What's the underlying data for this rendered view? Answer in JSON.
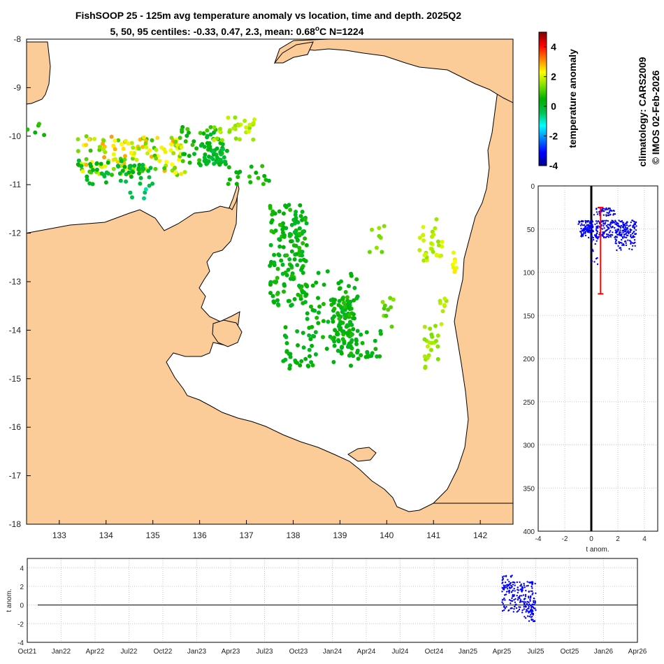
{
  "title": {
    "line1": "FishSOOP 25 - 125m avg temperature anomaly vs location, time and depth. 2025Q2",
    "line2_prefix": "5, 50, 95 centiles: -0.33, 0.47, 2.3, mean: 0.68",
    "line2_degree": "o",
    "line2_suffix": "C N=1224"
  },
  "side_text": {
    "climatology": "climatology: CARS2009",
    "credit": "© IMOS 02-Feb-2026"
  },
  "colors": {
    "land": "#fbcb98",
    "coast": "#000000",
    "profile_points": "#0000ff",
    "profile_bar": "#ff0000",
    "timeseries_points": "#0000ff"
  },
  "chart_data": [
    {
      "type": "scatter",
      "name": "map",
      "xlabel": "",
      "ylabel": "",
      "xlim": [
        132.3,
        142.7
      ],
      "ylim": [
        -18,
        -8
      ],
      "xticks": [
        "133",
        "134",
        "135",
        "136",
        "137",
        "138",
        "139",
        "140",
        "141",
        "142"
      ],
      "yticks": [
        "-8",
        "-9",
        "-10",
        "-11",
        "-12",
        "-13",
        "-14",
        "-15",
        "-16",
        "-17",
        "-18"
      ],
      "grid": false,
      "color_by": "temperature anomaly",
      "clusters": [
        {
          "lon": [
            133.4,
            135.7
          ],
          "lat": [
            -10.8,
            -10.0
          ],
          "anom": [
            0.8,
            3.0
          ],
          "n": 140
        },
        {
          "lon": [
            133.4,
            135.0
          ],
          "lat": [
            -11.0,
            -10.5
          ],
          "anom": [
            -0.3,
            0.6
          ],
          "n": 50
        },
        {
          "lon": [
            135.6,
            136.5
          ],
          "lat": [
            -10.6,
            -9.8
          ],
          "anom": [
            0.0,
            1.0
          ],
          "n": 45
        },
        {
          "lon": [
            136.1,
            136.6
          ],
          "lat": [
            -10.6,
            -10.2
          ],
          "anom": [
            -0.4,
            0.4
          ],
          "n": 35
        },
        {
          "lon": [
            136.3,
            137.2
          ],
          "lat": [
            -10.1,
            -9.6
          ],
          "anom": [
            1.4,
            2.1
          ],
          "n": 30
        },
        {
          "lon": [
            136.6,
            137.5
          ],
          "lat": [
            -11.0,
            -10.6
          ],
          "anom": [
            0.2,
            0.9
          ],
          "n": 18
        },
        {
          "lon": [
            137.5,
            138.3
          ],
          "lat": [
            -13.5,
            -11.4
          ],
          "anom": [
            0.0,
            0.8
          ],
          "n": 160
        },
        {
          "lon": [
            137.7,
            138.5
          ],
          "lat": [
            -14.8,
            -13.9
          ],
          "anom": [
            0.0,
            0.6
          ],
          "n": 35
        },
        {
          "lon": [
            138.3,
            139.4
          ],
          "lat": [
            -14.8,
            -12.7
          ],
          "anom": [
            0.0,
            0.7
          ],
          "n": 60
        },
        {
          "lon": [
            138.8,
            139.3
          ],
          "lat": [
            -14.4,
            -13.3
          ],
          "anom": [
            0.1,
            0.8
          ],
          "n": 90
        },
        {
          "lon": [
            139.3,
            139.9
          ],
          "lat": [
            -14.6,
            -14.0
          ],
          "anom": [
            0.1,
            0.7
          ],
          "n": 22
        },
        {
          "lon": [
            139.6,
            140.0
          ],
          "lat": [
            -12.4,
            -11.8
          ],
          "anom": [
            1.0,
            1.6
          ],
          "n": 8
        },
        {
          "lon": [
            139.9,
            140.2
          ],
          "lat": [
            -14.0,
            -13.3
          ],
          "anom": [
            0.9,
            1.5
          ],
          "n": 10
        },
        {
          "lon": [
            140.7,
            141.2
          ],
          "lat": [
            -12.6,
            -11.7
          ],
          "anom": [
            1.5,
            2.1
          ],
          "n": 30
        },
        {
          "lon": [
            140.8,
            141.1
          ],
          "lat": [
            -14.8,
            -13.8
          ],
          "anom": [
            1.3,
            1.9
          ],
          "n": 22
        },
        {
          "lon": [
            141.4,
            141.5
          ],
          "lat": [
            -12.8,
            -12.4
          ],
          "anom": [
            2.0,
            2.6
          ],
          "n": 8
        },
        {
          "lon": [
            141.1,
            141.3
          ],
          "lat": [
            -14.0,
            -13.3
          ],
          "anom": [
            1.5,
            2.0
          ],
          "n": 8
        },
        {
          "lon": [
            134.5,
            135.0
          ],
          "lat": [
            -11.3,
            -11.0
          ],
          "anom": [
            -1.0,
            -0.3
          ],
          "n": 6
        },
        {
          "lon": [
            132.3,
            132.7
          ],
          "lat": [
            -10.1,
            -9.7
          ],
          "anom": [
            0.3,
            0.9
          ],
          "n": 5
        }
      ]
    },
    {
      "type": "colorbar",
      "name": "colorbar",
      "label": "temperature anomaly",
      "range": [
        -4,
        5
      ],
      "ticks": [
        "4",
        "2",
        "0",
        "-2",
        "-4"
      ],
      "tick_values": [
        4,
        2,
        0,
        -2,
        -4
      ],
      "colormap": [
        "#00008f",
        "#0000ff",
        "#0080ff",
        "#00ffff",
        "#00c050",
        "#00b000",
        "#80e000",
        "#ffff00",
        "#ff8000",
        "#ff0000",
        "#800000"
      ]
    },
    {
      "type": "scatter",
      "name": "profile",
      "xlabel": "t anom.",
      "ylabel": "",
      "xlim": [
        -4,
        5
      ],
      "ylim": [
        400,
        0
      ],
      "xticks": [
        "-4",
        "-2",
        "0",
        "2",
        "4"
      ],
      "yticks": [
        "0",
        "50",
        "100",
        "150",
        "200",
        "250",
        "300",
        "350",
        "400"
      ],
      "grid": true,
      "zero_line": 0,
      "mean_bar": {
        "x": 0.7,
        "depth_top": 25,
        "depth_bottom": 125
      },
      "clusters": [
        {
          "t": [
            -0.8,
            3.4
          ],
          "depth": [
            40,
            60
          ],
          "n": 300
        },
        {
          "t": [
            0.2,
            1.8
          ],
          "depth": [
            25,
            35
          ],
          "n": 50
        },
        {
          "t": [
            -1.0,
            0.2
          ],
          "depth": [
            40,
            55
          ],
          "n": 40
        },
        {
          "t": [
            1.8,
            3.4
          ],
          "depth": [
            55,
            75
          ],
          "n": 50
        },
        {
          "t": [
            0.0,
            0.5
          ],
          "depth": [
            60,
            95
          ],
          "n": 15
        }
      ]
    },
    {
      "type": "scatter",
      "name": "timeseries",
      "xlabel": "",
      "ylabel": "t anom.",
      "ylim": [
        -4,
        5
      ],
      "yticks": [
        "4",
        "2",
        "0",
        "-2",
        "-4"
      ],
      "x": [
        "Oct21",
        "Jan22",
        "Apr22",
        "Jul22",
        "Oct22",
        "Jan23",
        "Apr23",
        "Jul23",
        "Oct23",
        "Jan24",
        "Apr24",
        "Jul24",
        "Oct24",
        "Jan25",
        "Apr25",
        "Jul25",
        "Oct25",
        "Jan26",
        "Apr26"
      ],
      "grid": true,
      "zero_line": 0,
      "clusters": [
        {
          "t_month": [
            42.0,
            45.0
          ],
          "anom": [
            -0.8,
            2.5
          ],
          "n": 180
        },
        {
          "t_month": [
            42.0,
            43.0
          ],
          "anom": [
            1.5,
            3.2
          ],
          "n": 30
        },
        {
          "t_month": [
            44.0,
            45.0
          ],
          "anom": [
            -1.9,
            0.2
          ],
          "n": 40
        }
      ]
    }
  ]
}
